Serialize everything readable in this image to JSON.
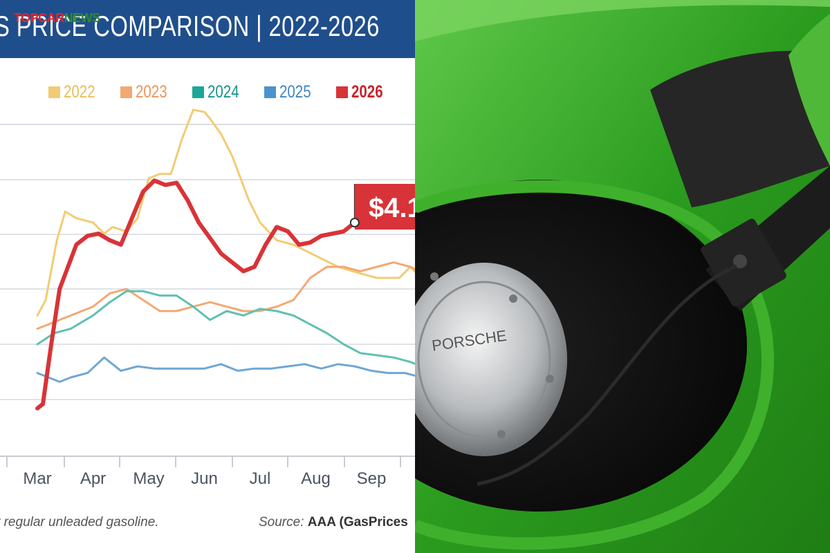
{
  "watermark": {
    "part1": "TOPCAR",
    "part2": "NEWS"
  },
  "chart_data": {
    "type": "line",
    "title": "S PRICE COMPARISON | 2022-2026",
    "categories": [
      "Mar",
      "Apr",
      "May",
      "Jun",
      "Jul",
      "Aug",
      "Sep"
    ],
    "callout": "$4.1",
    "note": "r regular unleaded gasoline.",
    "source_prefix": "Source: ",
    "source_bold": "AAA (GasPrices",
    "grid": true,
    "legend_position": "top",
    "series": [
      {
        "name": "2022",
        "color": "#f2cc73",
        "x": [
          0.0,
          0.15,
          0.35,
          0.5,
          0.7,
          1.0,
          1.2,
          1.35,
          1.6,
          1.8,
          2.0,
          2.2,
          2.4,
          2.6,
          2.8,
          3.0,
          3.1,
          3.3,
          3.5,
          3.8,
          4.0,
          4.3,
          4.6,
          5.0,
          5.4,
          5.8,
          6.1,
          6.5,
          6.7,
          7.0,
          7.3
        ],
        "y": [
          3.38,
          3.45,
          3.72,
          3.85,
          3.82,
          3.8,
          3.75,
          3.78,
          3.76,
          3.82,
          4.0,
          4.02,
          4.02,
          4.18,
          4.31,
          4.3,
          4.27,
          4.2,
          4.1,
          3.9,
          3.8,
          3.72,
          3.7,
          3.65,
          3.6,
          3.57,
          3.55,
          3.55,
          3.6,
          3.52,
          3.44
        ]
      },
      {
        "name": "2023",
        "color": "#f3a873",
        "x": [
          0.0,
          0.3,
          0.6,
          1.0,
          1.3,
          1.6,
          1.9,
          2.2,
          2.5,
          2.8,
          3.1,
          3.4,
          3.7,
          4.0,
          4.3,
          4.6,
          4.9,
          5.2,
          5.5,
          5.8,
          6.1,
          6.4,
          6.7,
          7.0,
          7.3
        ],
        "y": [
          3.32,
          3.35,
          3.38,
          3.42,
          3.48,
          3.5,
          3.45,
          3.4,
          3.4,
          3.42,
          3.44,
          3.42,
          3.4,
          3.4,
          3.42,
          3.45,
          3.55,
          3.6,
          3.6,
          3.58,
          3.6,
          3.62,
          3.6,
          3.56,
          3.52
        ]
      },
      {
        "name": "2024",
        "color": "#5fc0b0",
        "x": [
          0.0,
          0.3,
          0.6,
          1.0,
          1.3,
          1.6,
          1.9,
          2.2,
          2.5,
          2.8,
          3.1,
          3.4,
          3.7,
          4.0,
          4.3,
          4.6,
          4.9,
          5.2,
          5.5,
          5.8,
          6.1,
          6.4,
          6.7,
          7.0,
          7.3
        ],
        "y": [
          3.25,
          3.3,
          3.32,
          3.38,
          3.44,
          3.49,
          3.49,
          3.47,
          3.47,
          3.42,
          3.36,
          3.4,
          3.38,
          3.41,
          3.4,
          3.38,
          3.34,
          3.3,
          3.25,
          3.21,
          3.2,
          3.19,
          3.17,
          3.14,
          3.1
        ]
      },
      {
        "name": "2025",
        "color": "#6fa6d3",
        "x": [
          0.0,
          0.2,
          0.4,
          0.6,
          0.9,
          1.2,
          1.5,
          1.8,
          2.1,
          2.4,
          2.7,
          3.0,
          3.3,
          3.6,
          3.9,
          4.2,
          4.5,
          4.8,
          5.1,
          5.4,
          5.7,
          6.0,
          6.3,
          6.6,
          6.9,
          7.2,
          7.4
        ],
        "y": [
          3.12,
          3.1,
          3.08,
          3.1,
          3.12,
          3.19,
          3.13,
          3.15,
          3.14,
          3.14,
          3.14,
          3.14,
          3.16,
          3.13,
          3.14,
          3.14,
          3.15,
          3.16,
          3.14,
          3.16,
          3.15,
          3.13,
          3.12,
          3.12,
          3.1,
          3.05,
          3.02
        ]
      },
      {
        "name": "2026",
        "color": "#d83338",
        "x": [
          0.0,
          0.1,
          0.25,
          0.4,
          0.55,
          0.7,
          0.9,
          1.1,
          1.3,
          1.5,
          1.7,
          1.9,
          2.1,
          2.3,
          2.5,
          2.7,
          2.9,
          3.1,
          3.3,
          3.5,
          3.7,
          3.9,
          4.1,
          4.3,
          4.5,
          4.7,
          4.9,
          5.1,
          5.3,
          5.5,
          5.7
        ],
        "y": [
          2.96,
          2.98,
          3.25,
          3.5,
          3.6,
          3.7,
          3.74,
          3.75,
          3.72,
          3.7,
          3.82,
          3.94,
          3.99,
          3.97,
          3.98,
          3.9,
          3.8,
          3.73,
          3.66,
          3.62,
          3.58,
          3.6,
          3.7,
          3.78,
          3.76,
          3.7,
          3.71,
          3.74,
          3.75,
          3.76,
          3.8
        ]
      }
    ]
  }
}
